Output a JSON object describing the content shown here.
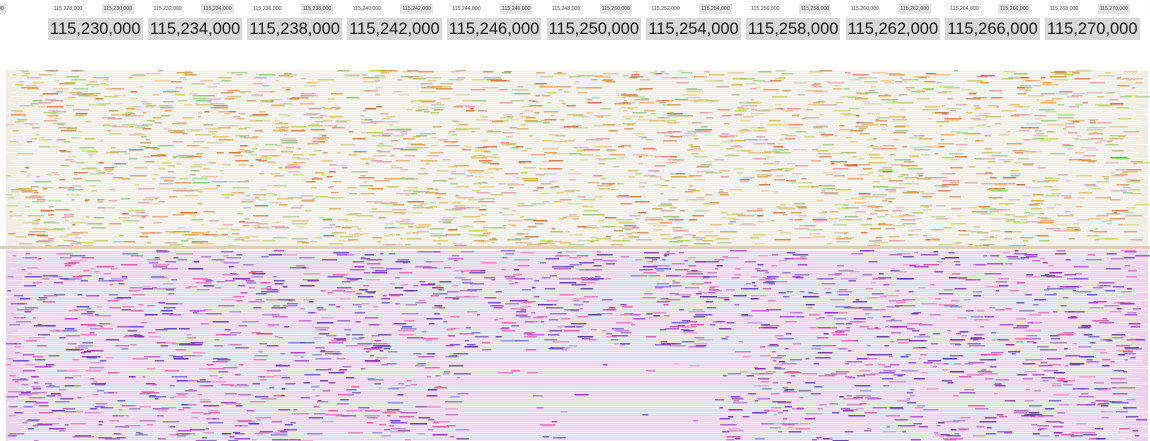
{
  "ruler": {
    "small_ticks": [
      "00",
      "115,228,000",
      "115,230,000",
      "115,232,000",
      "115,234,000",
      "115,236,000",
      "115,238,000",
      "115,240,000",
      "115,242,000",
      "115,244,000",
      "115,246,000",
      "115,248,000",
      "115,250,000",
      "115,252,000",
      "115,254,000",
      "115,256,000",
      "115,258,000",
      "115,260,000",
      "115,262,000",
      "115,264,000",
      "115,266,000",
      "115,268,000",
      "115,270,000",
      "115,272,"
    ],
    "big_labels": [
      "115,230,000",
      "115,234,000",
      "115,238,000",
      "115,242,000",
      "115,246,000",
      "115,250,000",
      "115,254,000",
      "115,258,000",
      "115,262,000",
      "115,266,000",
      "115,270,000"
    ]
  },
  "tracks": [
    {
      "id": "track-upper",
      "colors": {
        "base": "#f0eee4",
        "marks": [
          "#d2a04a",
          "#c86e3c",
          "#b9cf63",
          "#d7a0a8",
          "#9ac27a",
          "#e0c070"
        ]
      }
    },
    {
      "id": "track-lower",
      "colors": {
        "base": "#ecd3ec",
        "marks": [
          "#a84fc0",
          "#6a50c0",
          "#d65ca8",
          "#8a2fb0",
          "#e07ab8",
          "#5a3aa0"
        ]
      }
    }
  ]
}
